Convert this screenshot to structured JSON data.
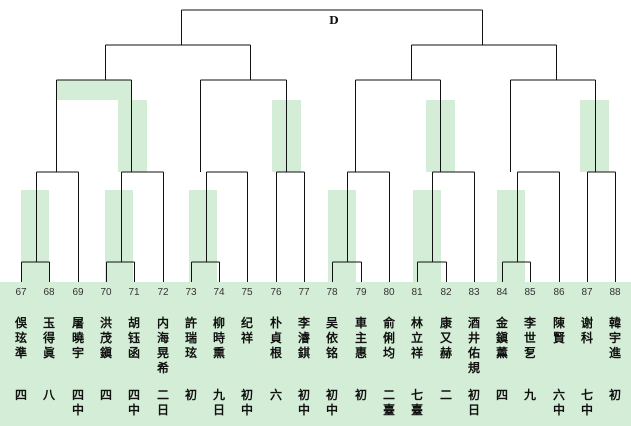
{
  "final": {
    "label": "D"
  },
  "players": [
    {
      "number": "67",
      "name": "俁玹準",
      "grade": "四"
    },
    {
      "number": "68",
      "name": "玉得眞",
      "grade": "八"
    },
    {
      "number": "69",
      "name": "屠曉宇",
      "grade": "四中"
    },
    {
      "number": "70",
      "name": "洪茂鎭",
      "grade": "四"
    },
    {
      "number": "71",
      "name": "胡钰函",
      "grade": "四中"
    },
    {
      "number": "72",
      "name": "内海晃希",
      "grade": "二日"
    },
    {
      "number": "73",
      "name": "許瑞玹",
      "grade": "初"
    },
    {
      "number": "74",
      "name": "柳時熏",
      "grade": "九日"
    },
    {
      "number": "75",
      "name": "纪祥",
      "grade": "初中"
    },
    {
      "number": "76",
      "name": "朴貞根",
      "grade": "六"
    },
    {
      "number": "77",
      "name": "李濬錤",
      "grade": "初中"
    },
    {
      "number": "78",
      "name": "吴依铭",
      "grade": "初中"
    },
    {
      "number": "79",
      "name": "車主惠",
      "grade": "初"
    },
    {
      "number": "80",
      "name": "俞俐均",
      "grade": "二臺"
    },
    {
      "number": "81",
      "name": "林立祥",
      "grade": "七臺"
    },
    {
      "number": "82",
      "name": "康又赫",
      "grade": "二"
    },
    {
      "number": "83",
      "name": "酒井佑規",
      "grade": "初日"
    },
    {
      "number": "84",
      "name": "金鎭薰",
      "grade": "四"
    },
    {
      "number": "85",
      "name": "李世乭",
      "grade": "九"
    },
    {
      "number": "86",
      "name": "陳賢",
      "grade": "六中"
    },
    {
      "number": "87",
      "name": "谢科",
      "grade": "七中"
    },
    {
      "number": "88",
      "name": "韓宇進",
      "grade": "初"
    }
  ]
}
